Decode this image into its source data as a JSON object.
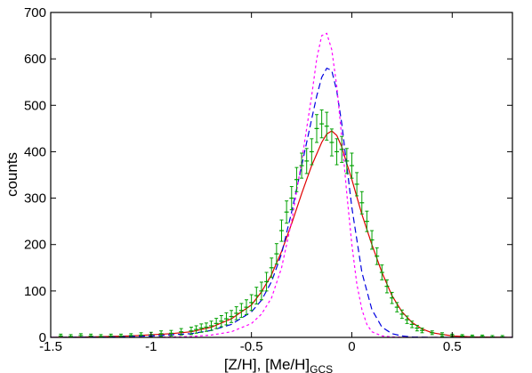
{
  "chart_data": {
    "type": "line",
    "title": "",
    "xlabel": "[Z/H], [Me/H]",
    "xlabel_subscript": "GCS",
    "ylabel": "counts",
    "xlim": [
      -1.5,
      0.8
    ],
    "ylim": [
      0,
      700
    ],
    "xticks": [
      -1.5,
      -1,
      -0.5,
      0,
      0.5
    ],
    "xtick_labels": [
      "-1.5",
      "-1",
      "-0.5",
      "0",
      "0.5"
    ],
    "yticks": [
      0,
      100,
      200,
      300,
      400,
      500,
      600,
      700
    ],
    "ytick_labels": [
      "0",
      "100",
      "200",
      "300",
      "400",
      "500",
      "600",
      "700"
    ],
    "grid": false,
    "series": [
      {
        "kind": "errorbar-points",
        "color": "#00a000",
        "x": [
          -1.45,
          -1.4,
          -1.35,
          -1.3,
          -1.25,
          -1.2,
          -1.15,
          -1.1,
          -1.05,
          -1.0,
          -0.95,
          -0.9,
          -0.85,
          -0.8,
          -0.775,
          -0.75,
          -0.725,
          -0.7,
          -0.675,
          -0.65,
          -0.625,
          -0.6,
          -0.575,
          -0.55,
          -0.525,
          -0.5,
          -0.475,
          -0.45,
          -0.425,
          -0.4,
          -0.375,
          -0.35,
          -0.325,
          -0.3,
          -0.275,
          -0.25,
          -0.225,
          -0.2,
          -0.175,
          -0.15,
          -0.125,
          -0.1,
          -0.075,
          -0.05,
          -0.025,
          0.0,
          0.025,
          0.05,
          0.075,
          0.1,
          0.125,
          0.15,
          0.175,
          0.2,
          0.225,
          0.25,
          0.275,
          0.3,
          0.325,
          0.35,
          0.4,
          0.45,
          0.5,
          0.55,
          0.6,
          0.65,
          0.7,
          0.75
        ],
        "y": [
          3,
          2,
          4,
          3,
          2,
          3,
          3,
          4,
          5,
          6,
          8,
          9,
          12,
          14,
          17,
          20,
          22,
          25,
          30,
          35,
          40,
          45,
          52,
          58,
          65,
          75,
          90,
          100,
          120,
          150,
          180,
          230,
          270,
          300,
          340,
          370,
          380,
          400,
          450,
          460,
          455,
          420,
          400,
          405,
          380,
          370,
          330,
          290,
          250,
          210,
          175,
          140,
          110,
          85,
          65,
          50,
          38,
          28,
          20,
          15,
          10,
          6,
          4,
          3,
          2,
          2,
          1,
          1
        ],
        "error": [
          4,
          4,
          4,
          4,
          4,
          4,
          4,
          4,
          5,
          5,
          6,
          6,
          7,
          8,
          8,
          9,
          9,
          10,
          11,
          12,
          13,
          13,
          14,
          15,
          16,
          17,
          18,
          19,
          20,
          21,
          22,
          23,
          24,
          25,
          26,
          27,
          27,
          28,
          30,
          30,
          30,
          29,
          28,
          28,
          27,
          27,
          25,
          24,
          22,
          20,
          18,
          16,
          14,
          12,
          10,
          9,
          8,
          7,
          6,
          5,
          4,
          4,
          3,
          3,
          3,
          3,
          3,
          3
        ]
      },
      {
        "kind": "line",
        "color": "#e00000",
        "dash": "",
        "x": [
          -1.5,
          -1.3,
          -1.1,
          -0.9,
          -0.8,
          -0.7,
          -0.6,
          -0.5,
          -0.45,
          -0.4,
          -0.35,
          -0.3,
          -0.25,
          -0.2,
          -0.15,
          -0.125,
          -0.1,
          -0.075,
          -0.05,
          -0.025,
          0.0,
          0.05,
          0.1,
          0.15,
          0.2,
          0.25,
          0.3,
          0.35,
          0.4,
          0.5,
          0.6,
          0.8
        ],
        "y": [
          0,
          1,
          3,
          8,
          12,
          22,
          40,
          70,
          98,
          135,
          185,
          245,
          310,
          370,
          420,
          438,
          445,
          435,
          410,
          375,
          340,
          265,
          200,
          140,
          90,
          55,
          32,
          18,
          10,
          3,
          1,
          0
        ]
      },
      {
        "kind": "line",
        "color": "#0000e0",
        "dash": "7 4",
        "x": [
          -1.5,
          -1.2,
          -1.0,
          -0.8,
          -0.7,
          -0.6,
          -0.5,
          -0.45,
          -0.4,
          -0.35,
          -0.3,
          -0.25,
          -0.2,
          -0.175,
          -0.15,
          -0.125,
          -0.1,
          -0.075,
          -0.05,
          -0.025,
          0.0,
          0.05,
          0.1,
          0.15,
          0.2,
          0.25,
          0.3,
          0.4,
          0.5,
          0.8
        ],
        "y": [
          0,
          1,
          3,
          8,
          15,
          28,
          55,
          80,
          120,
          180,
          270,
          370,
          470,
          520,
          560,
          580,
          575,
          530,
          460,
          370,
          280,
          140,
          60,
          22,
          8,
          3,
          1,
          0,
          0,
          0
        ]
      },
      {
        "kind": "line",
        "color": "#ff00ff",
        "dash": "3 3",
        "x": [
          -1.5,
          -1.0,
          -0.8,
          -0.7,
          -0.6,
          -0.5,
          -0.45,
          -0.4,
          -0.35,
          -0.3,
          -0.25,
          -0.2,
          -0.175,
          -0.15,
          -0.125,
          -0.1,
          -0.075,
          -0.05,
          -0.025,
          0.0,
          0.025,
          0.05,
          0.075,
          0.1,
          0.15,
          0.2,
          0.3,
          0.8
        ],
        "y": [
          0,
          0,
          2,
          5,
          12,
          30,
          50,
          85,
          150,
          250,
          380,
          520,
          600,
          650,
          655,
          620,
          540,
          430,
          310,
          200,
          115,
          60,
          28,
          12,
          3,
          1,
          0,
          0
        ]
      }
    ]
  }
}
